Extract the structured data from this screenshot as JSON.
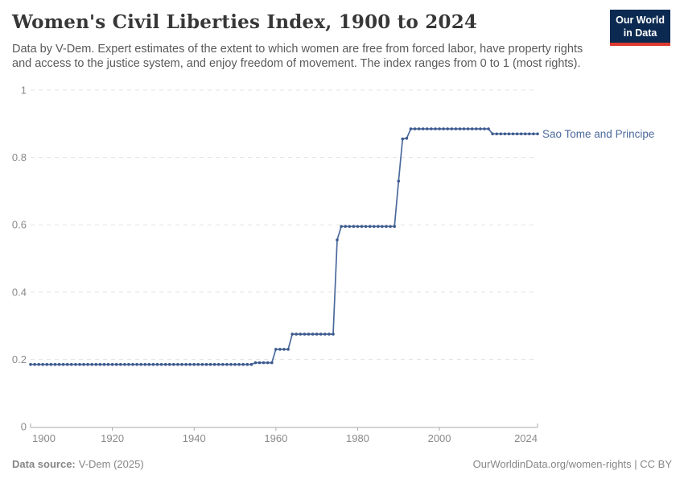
{
  "header": {
    "title": "Women's Civil Liberties Index, 1900 to 2024",
    "subtitle_lines": [
      "Data by V-Dem. Expert estimates of the extent to which women are free from forced labor, have property rights",
      "and access to the justice system, and enjoy freedom of movement. The index ranges from 0 to 1 (most rights)."
    ],
    "logo_line1": "Our World",
    "logo_line2": "in Data"
  },
  "chart_data": {
    "type": "line",
    "title": "Women's Civil Liberties Index, 1900 to 2024",
    "subtitle": "Data by V-Dem. Expert estimates of the extent to which women are free from forced labor, have property rights and access to the justice system, and enjoy freedom of movement. The index ranges from 0 to 1 (most rights).",
    "xlabel": "",
    "ylabel": "",
    "xlim": [
      1900,
      2024
    ],
    "ylim": [
      0,
      1
    ],
    "grid": "horizontal-dashed",
    "legend_position": "right-of-line-end",
    "xticks": [
      {
        "year": 1900,
        "label": "1900"
      },
      {
        "year": 1920,
        "label": "1920"
      },
      {
        "year": 1940,
        "label": "1940"
      },
      {
        "year": 1960,
        "label": "1960"
      },
      {
        "year": 1980,
        "label": "1980"
      },
      {
        "year": 2000,
        "label": "2000"
      },
      {
        "year": 2024,
        "label": "2024"
      }
    ],
    "yticks": [
      {
        "value": 0,
        "label": "0"
      },
      {
        "value": 0.2,
        "label": "0.2"
      },
      {
        "value": 0.4,
        "label": "0.4"
      },
      {
        "value": 0.6,
        "label": "0.6"
      },
      {
        "value": 0.8,
        "label": "0.8"
      },
      {
        "value": 1,
        "label": "1"
      }
    ],
    "series": [
      {
        "name": "Sao Tome and Principe",
        "color": "#4c6a9c",
        "marker_color": "#3d5a8f",
        "points": [
          [
            1900,
            0.185
          ],
          [
            1901,
            0.185
          ],
          [
            1902,
            0.185
          ],
          [
            1903,
            0.185
          ],
          [
            1904,
            0.185
          ],
          [
            1905,
            0.185
          ],
          [
            1906,
            0.185
          ],
          [
            1907,
            0.185
          ],
          [
            1908,
            0.185
          ],
          [
            1909,
            0.185
          ],
          [
            1910,
            0.185
          ],
          [
            1911,
            0.185
          ],
          [
            1912,
            0.185
          ],
          [
            1913,
            0.185
          ],
          [
            1914,
            0.185
          ],
          [
            1915,
            0.185
          ],
          [
            1916,
            0.185
          ],
          [
            1917,
            0.185
          ],
          [
            1918,
            0.185
          ],
          [
            1919,
            0.185
          ],
          [
            1920,
            0.185
          ],
          [
            1921,
            0.185
          ],
          [
            1922,
            0.185
          ],
          [
            1923,
            0.185
          ],
          [
            1924,
            0.185
          ],
          [
            1925,
            0.185
          ],
          [
            1926,
            0.185
          ],
          [
            1927,
            0.185
          ],
          [
            1928,
            0.185
          ],
          [
            1929,
            0.185
          ],
          [
            1930,
            0.185
          ],
          [
            1931,
            0.185
          ],
          [
            1932,
            0.185
          ],
          [
            1933,
            0.185
          ],
          [
            1934,
            0.185
          ],
          [
            1935,
            0.185
          ],
          [
            1936,
            0.185
          ],
          [
            1937,
            0.185
          ],
          [
            1938,
            0.185
          ],
          [
            1939,
            0.185
          ],
          [
            1940,
            0.185
          ],
          [
            1941,
            0.185
          ],
          [
            1942,
            0.185
          ],
          [
            1943,
            0.185
          ],
          [
            1944,
            0.185
          ],
          [
            1945,
            0.185
          ],
          [
            1946,
            0.185
          ],
          [
            1947,
            0.185
          ],
          [
            1948,
            0.185
          ],
          [
            1949,
            0.185
          ],
          [
            1950,
            0.185
          ],
          [
            1951,
            0.185
          ],
          [
            1952,
            0.185
          ],
          [
            1953,
            0.185
          ],
          [
            1954,
            0.185
          ],
          [
            1955,
            0.19
          ],
          [
            1956,
            0.19
          ],
          [
            1957,
            0.19
          ],
          [
            1958,
            0.19
          ],
          [
            1959,
            0.19
          ],
          [
            1960,
            0.23
          ],
          [
            1961,
            0.23
          ],
          [
            1962,
            0.23
          ],
          [
            1963,
            0.23
          ],
          [
            1964,
            0.275
          ],
          [
            1965,
            0.275
          ],
          [
            1966,
            0.275
          ],
          [
            1967,
            0.275
          ],
          [
            1968,
            0.275
          ],
          [
            1969,
            0.275
          ],
          [
            1970,
            0.275
          ],
          [
            1971,
            0.275
          ],
          [
            1972,
            0.275
          ],
          [
            1973,
            0.275
          ],
          [
            1974,
            0.275
          ],
          [
            1975,
            0.555
          ],
          [
            1976,
            0.595
          ],
          [
            1977,
            0.595
          ],
          [
            1978,
            0.595
          ],
          [
            1979,
            0.595
          ],
          [
            1980,
            0.595
          ],
          [
            1981,
            0.595
          ],
          [
            1982,
            0.595
          ],
          [
            1983,
            0.595
          ],
          [
            1984,
            0.595
          ],
          [
            1985,
            0.595
          ],
          [
            1986,
            0.595
          ],
          [
            1987,
            0.595
          ],
          [
            1988,
            0.595
          ],
          [
            1989,
            0.595
          ],
          [
            1990,
            0.73
          ],
          [
            1991,
            0.855
          ],
          [
            1992,
            0.857
          ],
          [
            1993,
            0.885
          ],
          [
            1994,
            0.885
          ],
          [
            1995,
            0.885
          ],
          [
            1996,
            0.885
          ],
          [
            1997,
            0.885
          ],
          [
            1998,
            0.885
          ],
          [
            1999,
            0.885
          ],
          [
            2000,
            0.885
          ],
          [
            2001,
            0.885
          ],
          [
            2002,
            0.885
          ],
          [
            2003,
            0.885
          ],
          [
            2004,
            0.885
          ],
          [
            2005,
            0.885
          ],
          [
            2006,
            0.885
          ],
          [
            2007,
            0.885
          ],
          [
            2008,
            0.885
          ],
          [
            2009,
            0.885
          ],
          [
            2010,
            0.885
          ],
          [
            2011,
            0.885
          ],
          [
            2012,
            0.885
          ],
          [
            2013,
            0.87
          ],
          [
            2014,
            0.87
          ],
          [
            2015,
            0.87
          ],
          [
            2016,
            0.87
          ],
          [
            2017,
            0.87
          ],
          [
            2018,
            0.87
          ],
          [
            2019,
            0.87
          ],
          [
            2020,
            0.87
          ],
          [
            2021,
            0.87
          ],
          [
            2022,
            0.87
          ],
          [
            2023,
            0.87
          ],
          [
            2024,
            0.87
          ]
        ]
      }
    ]
  },
  "footer": {
    "source_label": "Data source:",
    "source_value": "V-Dem (2025)",
    "credit": "OurWorldinData.org/women-rights | CC BY"
  },
  "colors": {
    "line": "#4c6a9c",
    "marker": "#3d5a8f",
    "series_label": "#4c6a9c",
    "grid": "#e3e3e3",
    "axis": "#a8a8a8",
    "tick_text": "#8a8a8a",
    "title_text": "#373737",
    "subtitle_text": "#5a5a5a",
    "footer_text": "#868686",
    "logo_navy": "#0c2a51",
    "logo_red": "#dc3a2f"
  }
}
